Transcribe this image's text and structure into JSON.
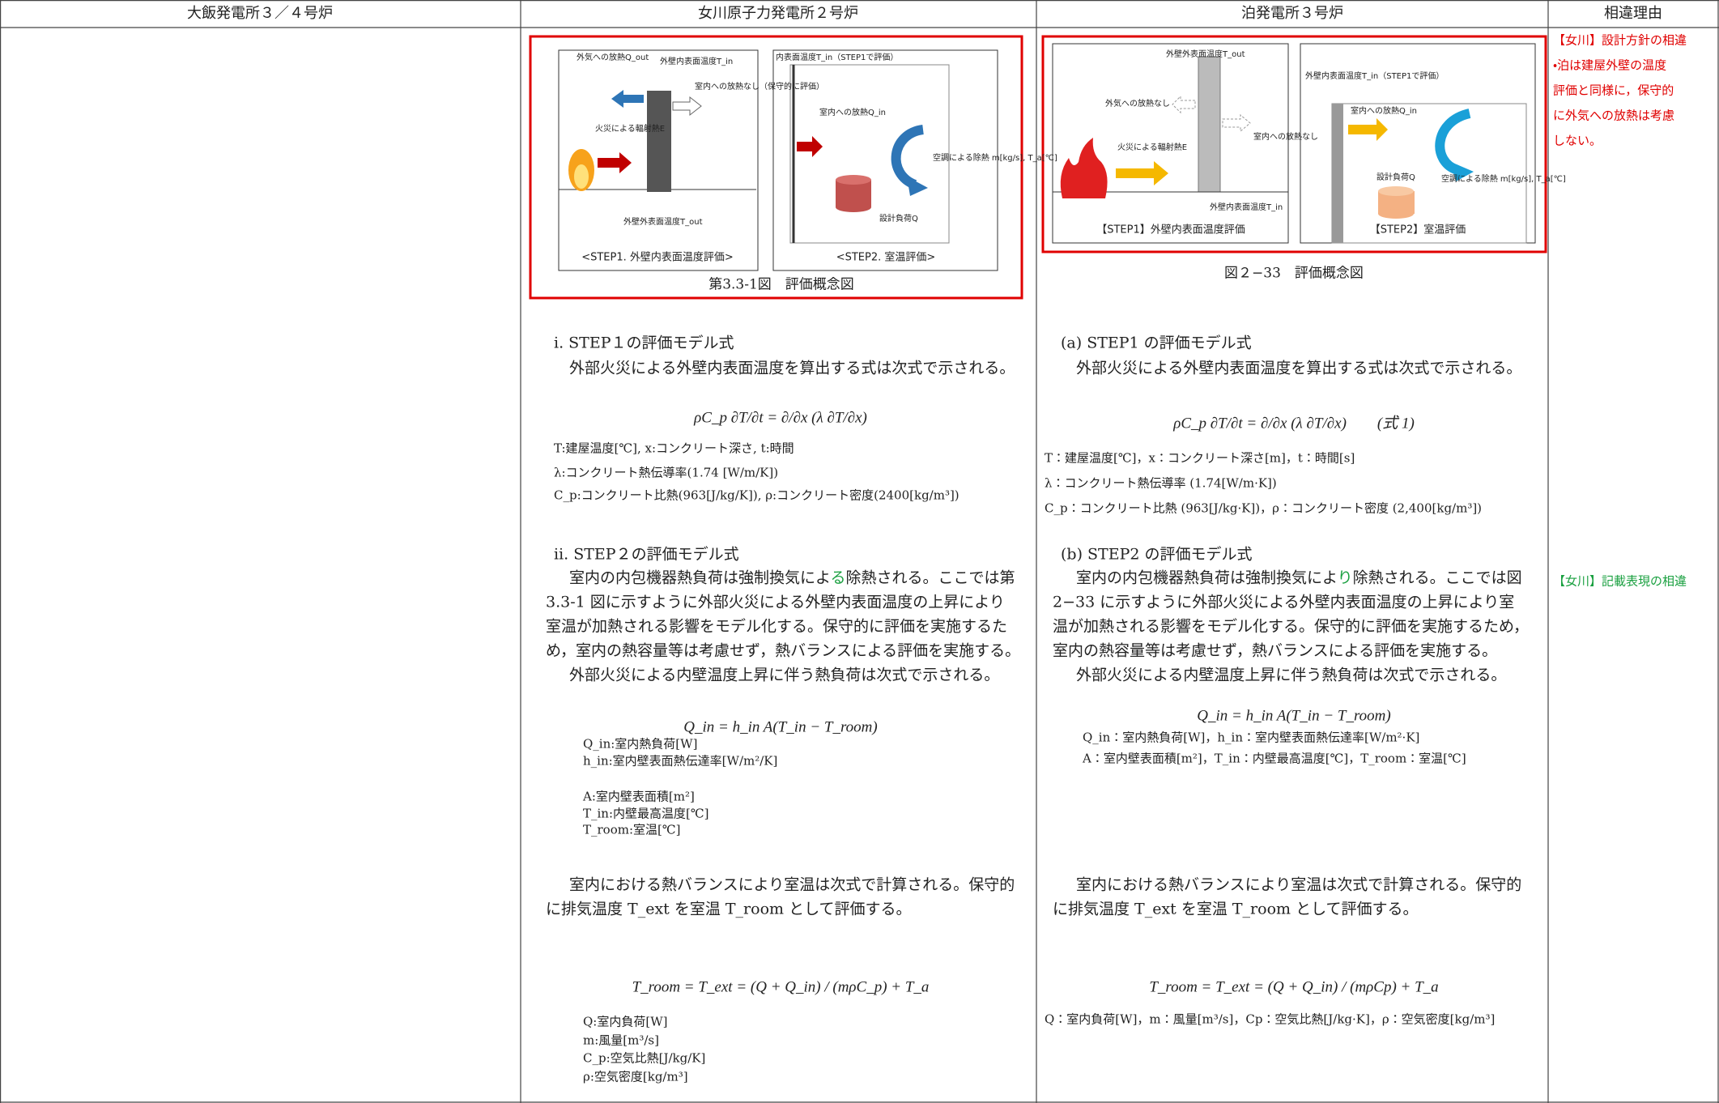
{
  "header": {
    "columns": [
      "大飯発電所３／４号炉",
      "女川原子力発電所２号炉",
      "泊発電所３号炉",
      "相違理由"
    ]
  },
  "onagawa": {
    "figure": {
      "labels": [
        "外気への放熱Q_out",
        "外壁内表面温度T_in",
        "室内への放熱なし（保守的に評価）",
        "火災による輻射熱E",
        "外壁外表面温度T_out",
        "内表面温度T_in（STEP1で評価）",
        "室内への放熱Q_in",
        "空調による除熱 m[kg/s], T_a[℃]",
        "設計負荷Q"
      ],
      "step1": "<STEP1. 外壁内表面温度評価>",
      "step2": "<STEP2. 室温評価>",
      "caption": "第3.3-1図　評価概念図"
    },
    "step1": {
      "heading": "ⅰ. STEP１の評価モデル式",
      "text": "外部火災による外壁内表面温度を算出する式は次式で示される。",
      "formula": "ρC_p ∂T/∂t = ∂/∂x (λ ∂T/∂x)",
      "vars": [
        "T:建屋温度[℃], x:コンクリート深さ, t:時間",
        "λ:コンクリート熱伝導率(1.74 [W/m/K])",
        "C_p:コンクリート比熱(963[J/kg/K]), ρ:コンクリート密度(2400[kg/m³])"
      ]
    },
    "step2": {
      "heading": "ⅱ. STEP２の評価モデル式",
      "first_line": {
        "pre": "室内の内包機器熱負荷は強制換気によ",
        "highlight": "る",
        "post": "除熱される。ここでは第"
      },
      "lines": [
        "3.3-1 図に示すように外部火災による外壁内表面温度の上昇により",
        "室温が加熱される影響をモデル化する。保守的に評価を実施するた",
        "め，室内の熱容量等は考慮せず，熱バランスによる評価を実施する。",
        "外部火災による内壁温度上昇に伴う熱負荷は次式で示される。"
      ],
      "formula": "Q_in = h_in A(T_in − T_room)",
      "vars": [
        "Q_in:室内熱負荷[W]",
        "h_in:室内壁表面熱伝達率[W/m²/K]",
        "A:室内壁表面積[m²]",
        "T_in:内壁最高温度[℃]",
        "T_room:室温[℃]"
      ]
    },
    "balance": {
      "lines": [
        "室内における熱バランスにより室温は次式で計算される。保守的",
        "に排気温度 T_ext を室温 T_room として評価する。"
      ],
      "formula": "T_room = T_ext = (Q + Q_in) / (mρC_p) + T_a",
      "vars": [
        "Q:室内負荷[W]",
        "m:風量[m³/s]",
        "C_p:空気比熱[J/kg/K]",
        "ρ:空気密度[kg/m³]"
      ]
    }
  },
  "tomari": {
    "figure": {
      "labels": [
        "外壁外表面温度T_out",
        "外気への放熱なし",
        "室内への放熱なし",
        "火災による輻射熱E",
        "外壁内表面温度T_in",
        "外壁内表面温度T_in（STEP1で評価）",
        "室内への放熱Q_in",
        "空調による除熱 m[kg/s], T_a[℃]",
        "設計負荷Q"
      ],
      "step1": "【STEP1】外壁内表面温度評価",
      "step2": "【STEP2】室温評価",
      "caption": "図２−33　評価概念図"
    },
    "step1": {
      "heading": "(a) STEP1 の評価モデル式",
      "text": "外部火災による外壁内表面温度を算出する式は次式で示される。",
      "formula": "ρC_p ∂T/∂t = ∂/∂x (λ ∂T/∂x)　　(式 1)",
      "vars": [
        "T：建屋温度[℃]，x：コンクリート深さ[m]，t：時間[s]",
        "λ：コンクリート熱伝導率 (1.74[W/m·K])",
        "C_p：コンクリート比熱 (963[J/kg·K])，ρ：コンクリート密度 (2,400[kg/m³])"
      ]
    },
    "step2": {
      "heading": "(b) STEP2 の評価モデル式",
      "first_line": {
        "pre": "室内の内包機器熱負荷は強制換気によ",
        "highlight": "り",
        "post": "除熱される。ここでは図"
      },
      "lines": [
        "2−33 に示すように外部火災による外壁内表面温度の上昇により室",
        "温が加熱される影響をモデル化する。保守的に評価を実施するため，",
        "室内の熱容量等は考慮せず，熱バランスによる評価を実施する。",
        "外部火災による内壁温度上昇に伴う熱負荷は次式で示される。"
      ],
      "formula": "Q_in = h_in A(T_in − T_room)",
      "vars": [
        "Q_in：室内熱負荷[W]，h_in：室内壁表面熱伝達率[W/m²·K]",
        "A：室内壁表面積[m²]，T_in：内壁最高温度[℃]，T_room：室温[℃]"
      ]
    },
    "balance": {
      "lines": [
        "室内における熱バランスにより室温は次式で計算される。保守的",
        "に排気温度 T_ext を室温 T_room として評価する。"
      ],
      "formula": "T_room = T_ext = (Q + Q_in) / (mρCp) + T_a",
      "vars": [
        "Q：室内負荷[W]，m：風量[m³/s]，Cp：空気比熱[J/kg·K]，ρ：空気密度[kg/m³]"
      ]
    }
  },
  "reasons": {
    "first": [
      "【女川】設計方針の相違",
      "・泊は建屋外壁の温度",
      "評価と同様に，保守的",
      "に外気への放熱は考慮",
      "しない。"
    ],
    "second": "【女川】記載表現の相違"
  }
}
